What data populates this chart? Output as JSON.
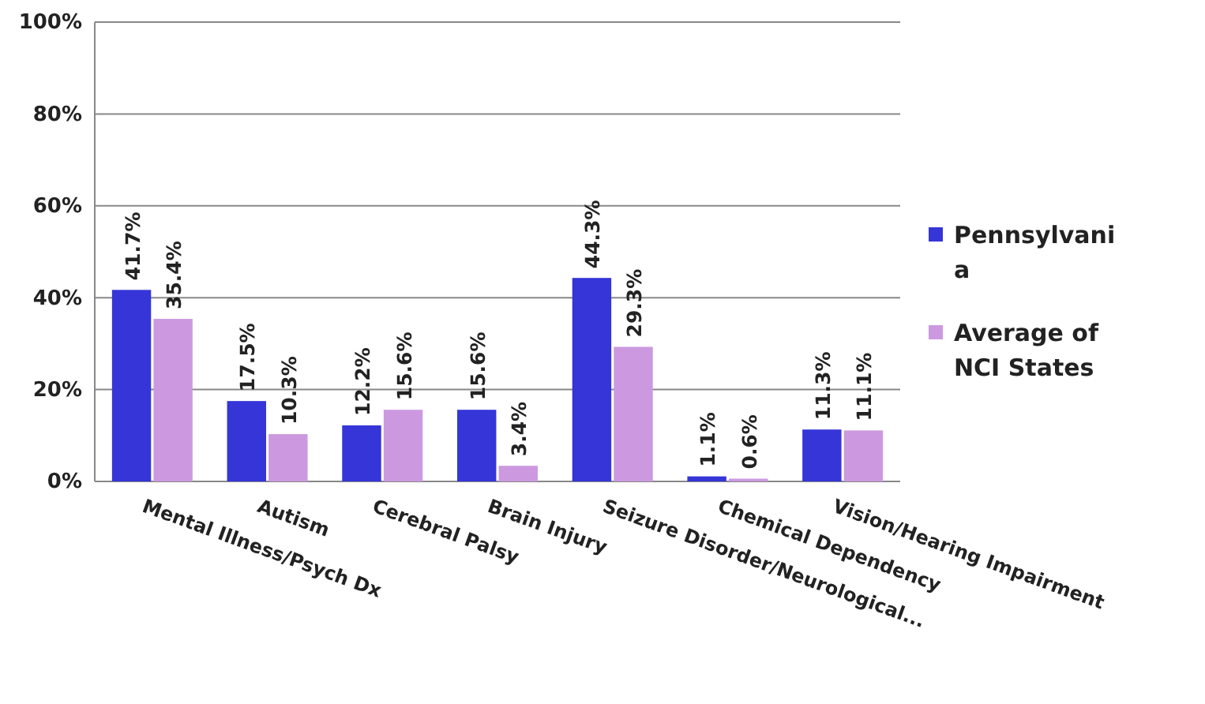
{
  "chart_data": {
    "type": "bar",
    "categories": [
      "Mental Illness/Psych Dx",
      "Autism",
      "Cerebral Palsy",
      "Brain Injury",
      "Seizure Disorder/Neurological...",
      "Chemical Dependency",
      "Vision/Hearing Impairment"
    ],
    "series": [
      {
        "name": "Pennsylvania",
        "color": "#3535d8",
        "values": [
          41.7,
          17.5,
          12.2,
          15.6,
          44.3,
          1.1,
          11.3
        ],
        "value_labels": [
          "41.7%",
          "17.5%",
          "12.2%",
          "15.6%",
          "44.3%",
          "1.1%",
          "11.3%"
        ]
      },
      {
        "name": "Average of NCI States",
        "color": "#cc99e0",
        "values": [
          35.4,
          10.3,
          15.6,
          3.4,
          29.3,
          0.6,
          11.1
        ],
        "value_labels": [
          "35.4%",
          "10.3%",
          "15.6%",
          "3.4%",
          "29.3%",
          "0.6%",
          "11.1%"
        ]
      }
    ],
    "ylim": [
      0,
      100
    ],
    "yticks": [
      {
        "value": 0,
        "label": "0%"
      },
      {
        "value": 20,
        "label": "20%"
      },
      {
        "value": 40,
        "label": "40%"
      },
      {
        "value": 60,
        "label": "60%"
      },
      {
        "value": 80,
        "label": "80%"
      },
      {
        "value": 100,
        "label": "100%"
      }
    ],
    "grid": "y",
    "legend": "right"
  }
}
